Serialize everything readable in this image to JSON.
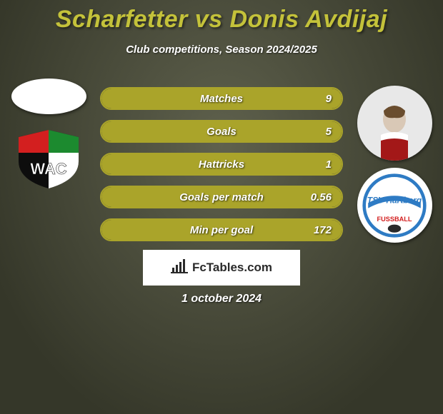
{
  "background_gradient": {
    "from": "#5f614d",
    "to": "#353729"
  },
  "title": {
    "text": "Scharfetter vs Donis Avdijaj",
    "color": "#c4c23a",
    "fontsize": 34
  },
  "subtitle": {
    "text": "Club competitions, Season 2024/2025",
    "color": "#ffffff",
    "fontsize": 15
  },
  "accent_color": "#aaa42a",
  "pill_border_color": "#aaa42a",
  "pill_fill_color": "#aaa42a",
  "players": {
    "left": {
      "name": "Scharfetter",
      "avatar_bg": "#ffffff",
      "club": "WAC",
      "club_logo_colors": {
        "black": "#0d0d0d",
        "red": "#d31f1f",
        "green": "#1c8a2f",
        "white": "#ffffff"
      }
    },
    "right": {
      "name": "Donis Avdijaj",
      "avatar_bg": "#e8dfd6",
      "club": "TSV Hartberg",
      "club_logo_colors": {
        "blue": "#2e7bc4",
        "white": "#ffffff",
        "red": "#d31f1f"
      }
    }
  },
  "stats": [
    {
      "label": "Matches",
      "value_right": "9",
      "fill_pct": 100
    },
    {
      "label": "Goals",
      "value_right": "5",
      "fill_pct": 100
    },
    {
      "label": "Hattricks",
      "value_right": "1",
      "fill_pct": 100
    },
    {
      "label": "Goals per match",
      "value_right": "0.56",
      "fill_pct": 100
    },
    {
      "label": "Min per goal",
      "value_right": "172",
      "fill_pct": 100
    }
  ],
  "footer": {
    "brand": "FcTables.com",
    "date": "1 october 2024",
    "box_bg": "#ffffff",
    "brand_color": "#2a2a2a"
  }
}
